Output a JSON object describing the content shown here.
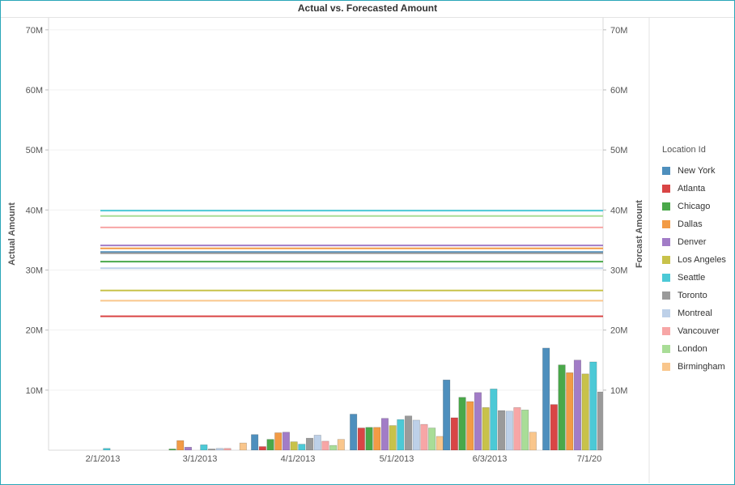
{
  "chart_data": {
    "type": "bar",
    "title": "Actual vs. Forecasted Amount",
    "ylabel": "Actual Amount",
    "ylabel_right": "Forcast Amount",
    "ylim": [
      0,
      72000000
    ],
    "y_ticks": [
      "10M",
      "20M",
      "30M",
      "40M",
      "50M",
      "60M",
      "70M"
    ],
    "categories": [
      "2/1/2013",
      "3/1/2013",
      "4/1/2013",
      "5/1/2013",
      "6/3/2013",
      "7/1/20"
    ],
    "legend_title": "Location Id",
    "legend_position": "right",
    "grid": true,
    "series": [
      {
        "name": "New York",
        "color": "#4e8fbd",
        "values": [
          0,
          0,
          2600000,
          6000000,
          11700000,
          17000000
        ],
        "forecast": 33000000
      },
      {
        "name": "Atlanta",
        "color": "#d94545",
        "values": [
          0,
          0,
          600000,
          3700000,
          5400000,
          7600000
        ],
        "forecast": 22300000
      },
      {
        "name": "Chicago",
        "color": "#4aa84a",
        "values": [
          0,
          200000,
          1800000,
          3800000,
          8800000,
          14200000
        ],
        "forecast": 31400000
      },
      {
        "name": "Dallas",
        "color": "#f29b45",
        "values": [
          0,
          1600000,
          2900000,
          3800000,
          8100000,
          12900000
        ],
        "forecast": 33600000
      },
      {
        "name": "Denver",
        "color": "#a27cc7",
        "values": [
          0,
          500000,
          3000000,
          5300000,
          9600000,
          15000000
        ],
        "forecast": 34100000
      },
      {
        "name": "Los Angeles",
        "color": "#c8c24a",
        "values": [
          0,
          0,
          1400000,
          4100000,
          7100000,
          12700000
        ],
        "forecast": 26600000
      },
      {
        "name": "Seattle",
        "color": "#4cc9d6",
        "values": [
          300000,
          900000,
          1000000,
          5100000,
          10200000,
          14700000
        ],
        "forecast": 39900000
      },
      {
        "name": "Toronto",
        "color": "#9a9a9a",
        "values": [
          0,
          200000,
          2000000,
          5700000,
          6600000,
          9700000
        ],
        "forecast": 32800000
      },
      {
        "name": "Montreal",
        "color": "#bdd0e8",
        "values": [
          0,
          300000,
          2500000,
          5000000,
          6500000,
          0
        ],
        "forecast": 30300000
      },
      {
        "name": "Vancouver",
        "color": "#f7a6a6",
        "values": [
          0,
          300000,
          1500000,
          4300000,
          7100000,
          0
        ],
        "forecast": 37100000
      },
      {
        "name": "London",
        "color": "#a9dd97",
        "values": [
          0,
          0,
          800000,
          3700000,
          6700000,
          0
        ],
        "forecast": 39000000
      },
      {
        "name": "Birmingham",
        "color": "#f9c68c",
        "values": [
          0,
          1200000,
          1800000,
          2300000,
          3000000,
          0
        ],
        "forecast": 24900000
      }
    ]
  }
}
